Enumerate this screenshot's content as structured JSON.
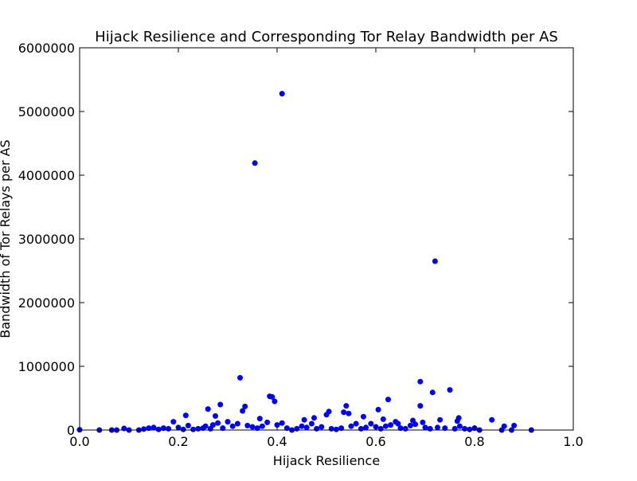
{
  "chart_data": {
    "type": "scatter",
    "title": "Hijack Resilience and Corresponding Tor Relay Bandwidth per AS",
    "xlabel": "Hijack Resilience",
    "ylabel": "Bandwidth of Tor Relays per AS",
    "xlim": [
      0.0,
      1.0
    ],
    "ylim": [
      0,
      6000000
    ],
    "xticks": [
      "0.0",
      "0.2",
      "0.4",
      "0.6",
      "0.8",
      "1.0"
    ],
    "yticks": [
      "0",
      "1000000",
      "2000000",
      "3000000",
      "4000000",
      "5000000",
      "6000000"
    ],
    "grid": false,
    "marker_color": "#0000ff",
    "points": [
      [
        0.0,
        5000
      ],
      [
        0.04,
        0
      ],
      [
        0.065,
        0
      ],
      [
        0.075,
        0
      ],
      [
        0.09,
        25000
      ],
      [
        0.1,
        0
      ],
      [
        0.12,
        0
      ],
      [
        0.13,
        15000
      ],
      [
        0.14,
        30000
      ],
      [
        0.15,
        40000
      ],
      [
        0.16,
        10000
      ],
      [
        0.17,
        30000
      ],
      [
        0.18,
        20000
      ],
      [
        0.19,
        130000
      ],
      [
        0.2,
        40000
      ],
      [
        0.21,
        10000
      ],
      [
        0.215,
        230000
      ],
      [
        0.22,
        70000
      ],
      [
        0.23,
        10000
      ],
      [
        0.24,
        20000
      ],
      [
        0.25,
        30000
      ],
      [
        0.255,
        60000
      ],
      [
        0.26,
        330000
      ],
      [
        0.265,
        20000
      ],
      [
        0.27,
        80000
      ],
      [
        0.275,
        220000
      ],
      [
        0.28,
        110000
      ],
      [
        0.285,
        400000
      ],
      [
        0.29,
        30000
      ],
      [
        0.3,
        130000
      ],
      [
        0.31,
        60000
      ],
      [
        0.32,
        100000
      ],
      [
        0.325,
        820000
      ],
      [
        0.33,
        300000
      ],
      [
        0.335,
        370000
      ],
      [
        0.34,
        70000
      ],
      [
        0.35,
        50000
      ],
      [
        0.355,
        4190000
      ],
      [
        0.36,
        30000
      ],
      [
        0.365,
        180000
      ],
      [
        0.37,
        60000
      ],
      [
        0.38,
        120000
      ],
      [
        0.385,
        530000
      ],
      [
        0.39,
        520000
      ],
      [
        0.395,
        450000
      ],
      [
        0.4,
        80000
      ],
      [
        0.41,
        5280000
      ],
      [
        0.41,
        110000
      ],
      [
        0.42,
        30000
      ],
      [
        0.43,
        0
      ],
      [
        0.44,
        20000
      ],
      [
        0.45,
        60000
      ],
      [
        0.455,
        160000
      ],
      [
        0.46,
        40000
      ],
      [
        0.47,
        100000
      ],
      [
        0.475,
        190000
      ],
      [
        0.48,
        20000
      ],
      [
        0.49,
        50000
      ],
      [
        0.5,
        240000
      ],
      [
        0.505,
        290000
      ],
      [
        0.51,
        20000
      ],
      [
        0.52,
        10000
      ],
      [
        0.53,
        30000
      ],
      [
        0.535,
        280000
      ],
      [
        0.54,
        380000
      ],
      [
        0.545,
        260000
      ],
      [
        0.55,
        60000
      ],
      [
        0.56,
        100000
      ],
      [
        0.57,
        20000
      ],
      [
        0.575,
        210000
      ],
      [
        0.58,
        40000
      ],
      [
        0.59,
        100000
      ],
      [
        0.6,
        50000
      ],
      [
        0.605,
        320000
      ],
      [
        0.61,
        20000
      ],
      [
        0.615,
        170000
      ],
      [
        0.62,
        60000
      ],
      [
        0.625,
        480000
      ],
      [
        0.63,
        80000
      ],
      [
        0.64,
        130000
      ],
      [
        0.645,
        100000
      ],
      [
        0.65,
        30000
      ],
      [
        0.66,
        20000
      ],
      [
        0.67,
        70000
      ],
      [
        0.675,
        150000
      ],
      [
        0.68,
        90000
      ],
      [
        0.69,
        380000
      ],
      [
        0.69,
        760000
      ],
      [
        0.695,
        120000
      ],
      [
        0.7,
        40000
      ],
      [
        0.71,
        20000
      ],
      [
        0.715,
        590000
      ],
      [
        0.72,
        2650000
      ],
      [
        0.725,
        40000
      ],
      [
        0.73,
        160000
      ],
      [
        0.74,
        30000
      ],
      [
        0.75,
        630000
      ],
      [
        0.76,
        20000
      ],
      [
        0.765,
        140000
      ],
      [
        0.768,
        190000
      ],
      [
        0.77,
        60000
      ],
      [
        0.78,
        20000
      ],
      [
        0.79,
        10000
      ],
      [
        0.8,
        30000
      ],
      [
        0.81,
        0
      ],
      [
        0.835,
        160000
      ],
      [
        0.855,
        0
      ],
      [
        0.86,
        60000
      ],
      [
        0.875,
        0
      ],
      [
        0.88,
        70000
      ],
      [
        0.915,
        0
      ]
    ]
  }
}
